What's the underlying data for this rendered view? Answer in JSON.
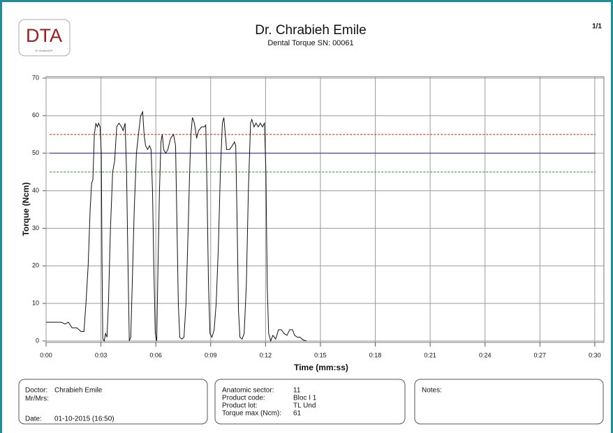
{
  "header": {
    "logo": "DTA",
    "logo_caption": "Dr StudioADP",
    "title": "Dr. Chrabieh Emile",
    "subtitle": "Dental Torque SN: 00061",
    "page": "1/1"
  },
  "chart_data": {
    "type": "line",
    "y_label": "Torque (Ncm)",
    "x_label": "Time (mm:ss)",
    "xlim": [
      0,
      30.5
    ],
    "ylim": [
      0,
      70
    ],
    "xticks": [
      {
        "value": 0,
        "label": "0:00"
      },
      {
        "value": 3,
        "label": "0:03"
      },
      {
        "value": 6,
        "label": "0:06"
      },
      {
        "value": 9,
        "label": "0:09"
      },
      {
        "value": 12,
        "label": "0:12"
      },
      {
        "value": 15,
        "label": "0:15"
      },
      {
        "value": 18,
        "label": "0:18"
      },
      {
        "value": 21,
        "label": "0:21"
      },
      {
        "value": 24,
        "label": "0:24"
      },
      {
        "value": 27,
        "label": "0:27"
      },
      {
        "value": 30,
        "label": "0:30"
      }
    ],
    "yticks": [
      0,
      10,
      20,
      30,
      40,
      50,
      60,
      70
    ],
    "grid": true,
    "reference_lines": [
      {
        "value": 55,
        "color": "#c0392b",
        "dashed": true
      },
      {
        "value": 50,
        "color": "#3b3bb5",
        "dashed": false
      },
      {
        "value": 45,
        "color": "#2e9e3a",
        "dashed": true
      }
    ],
    "x": [
      0.0,
      0.46,
      0.84,
      1.03,
      1.22,
      1.42,
      1.68,
      1.91,
      2.07,
      2.18,
      2.3,
      2.41,
      2.49,
      2.56,
      2.64,
      2.72,
      2.8,
      2.87,
      2.95,
      3.02,
      3.06,
      3.1,
      3.18,
      3.25,
      3.33,
      3.41,
      3.52,
      3.64,
      3.75,
      3.86,
      3.98,
      4.13,
      4.21,
      4.32,
      4.4,
      4.48,
      4.55,
      4.63,
      4.71,
      4.82,
      4.94,
      5.05,
      5.17,
      5.28,
      5.36,
      5.44,
      5.55,
      5.66,
      5.74,
      5.82,
      5.89,
      5.97,
      6.05,
      6.12,
      6.2,
      6.28,
      6.35,
      6.43,
      6.54,
      6.66,
      6.81,
      6.97,
      7.08,
      7.16,
      7.23,
      7.31,
      7.42,
      7.54,
      7.65,
      7.77,
      7.85,
      7.92,
      8.0,
      8.11,
      8.23,
      8.34,
      8.5,
      8.65,
      8.73,
      8.8,
      8.88,
      8.96,
      9.07,
      9.19,
      9.3,
      9.42,
      9.53,
      9.64,
      9.72,
      9.8,
      9.87,
      10.03,
      10.18,
      10.3,
      10.37,
      10.45,
      10.52,
      10.6,
      10.72,
      10.83,
      10.95,
      11.06,
      11.18,
      11.25,
      11.37,
      11.48,
      11.6,
      11.71,
      11.83,
      11.94,
      12.02,
      12.09,
      12.17,
      12.28,
      12.4,
      12.55,
      12.71,
      12.86,
      13.01,
      13.17,
      13.32,
      13.47,
      13.59,
      13.74,
      13.89,
      14.04,
      14.24
    ],
    "series": [
      {
        "color": "#111111",
        "values": [
          5,
          5,
          5,
          4.5,
          5,
          3.5,
          3.5,
          2.5,
          2.5,
          10,
          20,
          35,
          42,
          43,
          55,
          58,
          57,
          58,
          57,
          50,
          20,
          0.5,
          0,
          2,
          1,
          10,
          30,
          45,
          48,
          57,
          58,
          57,
          56,
          58,
          45,
          20,
          0,
          1,
          15,
          35,
          50,
          55,
          60,
          61,
          55,
          52,
          51,
          52,
          51,
          40,
          20,
          2,
          0,
          20,
          40,
          53,
          55,
          51,
          50,
          51,
          54,
          55,
          52,
          30,
          10,
          1,
          0.5,
          1,
          10,
          30,
          45,
          55,
          59.5,
          58,
          54,
          56,
          57,
          57,
          57.5,
          40,
          15,
          2,
          1,
          3,
          10,
          25,
          45,
          58,
          59.5,
          55,
          51,
          51,
          52,
          53,
          52,
          30,
          8,
          1,
          0.5,
          2,
          15,
          40,
          58,
          59,
          57,
          58,
          57,
          58,
          57,
          58,
          45,
          15,
          2,
          0,
          1.5,
          0.5,
          3,
          3,
          2,
          1.5,
          3,
          3,
          1.5,
          1,
          1,
          0.3,
          0
        ]
      }
    ]
  },
  "info_boxes": [
    {
      "fields": [
        {
          "label": "Doctor:",
          "value": "Chrabieh Emile"
        },
        {
          "label": "Mr/Mrs:"
        },
        {
          "label": "Date:",
          "value": "01-10-2015 (16:50)"
        }
      ]
    },
    {
      "fields": [
        {
          "label": "Anatomic sector:",
          "value": "11"
        },
        {
          "label": "Product code:",
          "value": "Bloc I 1"
        },
        {
          "label": "Product lot:",
          "value": "TL Und"
        },
        {
          "label": "Torque max (Ncm):",
          "value": "61"
        }
      ]
    },
    {
      "fields": [
        {
          "label": "Notes:"
        }
      ]
    }
  ]
}
